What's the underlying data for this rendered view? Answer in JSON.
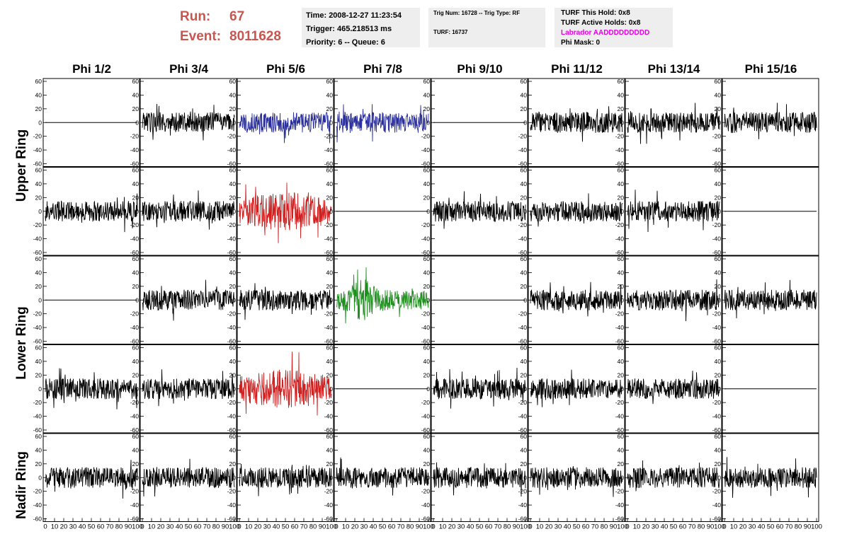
{
  "run_label": "Run:",
  "run_value": "67",
  "event_label": "Event:",
  "event_value": "8011628",
  "box1": {
    "time": "Time: 2008-12-27 11:23:54",
    "trigger": "Trigger: 465.218513 ms",
    "priority": "Priority: 6 -- Queue: 6"
  },
  "box2": {
    "trig": "Trig Num: 16728 -- Trig Type: RF",
    "turf": "TURF: 16737"
  },
  "box3": {
    "hold": "TURF This Hold: 0x8",
    "active": "TURF Active Holds: 0x8",
    "labrador": "Labrador AADDDDDDDDD",
    "phimask": "Phi Mask: 0"
  },
  "phi_headers": [
    "Phi 1/2",
    "Phi 3/4",
    "Phi 5/6",
    "Phi 7/8",
    "Phi 9/10",
    "Phi 11/12",
    "Phi 13/14",
    "Phi 15/16"
  ],
  "ring_labels": {
    "upper": "Upper Ring",
    "lower": "Lower Ring",
    "nadir": "Nadir Ring"
  },
  "colors": {
    "black": "#000000",
    "blue": "#2b2f9b",
    "red": "#d02020",
    "green": "#1f8f1f"
  },
  "chart_data": {
    "type": "line",
    "ylim": [
      -60,
      60
    ],
    "xlim": [
      0,
      100
    ],
    "y_ticks": [
      "60",
      "40",
      "20",
      "0",
      "-20",
      "-40",
      "-60"
    ],
    "x_ticks": [
      "0",
      "10",
      "20",
      "30",
      "40",
      "50",
      "60",
      "70",
      "80",
      "90",
      "100"
    ],
    "rows": 5,
    "cols": 8,
    "panels": [
      [
        "flat",
        "noise",
        "blue",
        "blue",
        "flat",
        "noise",
        "noise",
        "noise"
      ],
      [
        "noise",
        "noise",
        "red",
        "flat",
        "noise",
        "noise",
        "noise",
        "flat"
      ],
      [
        "flat",
        "noise",
        "noise",
        "green",
        "flat",
        "noise",
        "noise",
        "noise"
      ],
      [
        "noise",
        "noise",
        "red",
        "flat",
        "noise",
        "noise",
        "noise",
        "flat"
      ],
      [
        "noise",
        "noise",
        "noise",
        "noise",
        "noise",
        "noise",
        "noise",
        "noise"
      ]
    ]
  }
}
